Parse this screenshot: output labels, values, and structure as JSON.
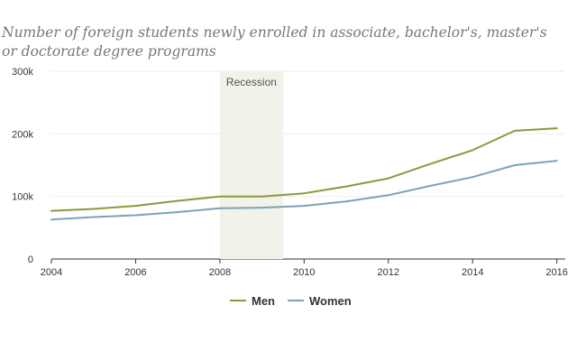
{
  "chart_data": {
    "type": "line",
    "subtitle": "Number of foreign students newly enrolled in associate, bachelor's, master's or doctorate degree programs",
    "title": "",
    "xlabel": "",
    "ylabel": "",
    "x": [
      2004,
      2005,
      2006,
      2007,
      2008,
      2009,
      2010,
      2011,
      2012,
      2013,
      2014,
      2015,
      2016
    ],
    "xticks": [
      2004,
      2006,
      2008,
      2010,
      2012,
      2014,
      2016
    ],
    "yticks": [
      0,
      100000,
      200000,
      300000
    ],
    "ytick_labels": [
      "0",
      "100k",
      "200k",
      "300k"
    ],
    "xlim": [
      2004,
      2016.2
    ],
    "ylim": [
      0,
      300000
    ],
    "grid": "horizontal-dotted",
    "legend_position": "bottom-center",
    "series": [
      {
        "name": "Men",
        "color": "#8a9a3a",
        "values": [
          77000,
          80000,
          85000,
          93000,
          100000,
          100000,
          105000,
          116000,
          129000,
          152000,
          174000,
          205000,
          209000
        ]
      },
      {
        "name": "Women",
        "color": "#7ba3b8",
        "values": [
          63000,
          67000,
          70000,
          75000,
          81000,
          82000,
          85000,
          92000,
          102000,
          117000,
          131000,
          150000,
          157000
        ]
      }
    ],
    "annotations": [
      {
        "label": "Recession",
        "x_start": 2008,
        "x_end": 2009.5,
        "color": "#f1f2ea"
      }
    ]
  }
}
